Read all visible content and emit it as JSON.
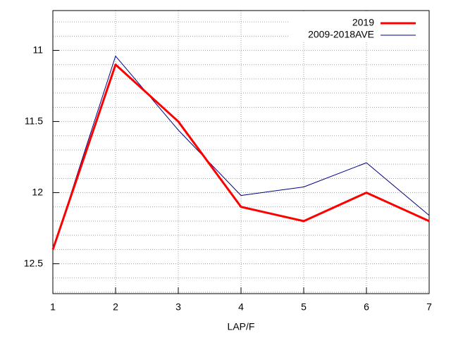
{
  "chart_data": {
    "type": "line",
    "x_label": "LAP/F",
    "x": [
      1,
      2,
      3,
      4,
      5,
      6,
      7
    ],
    "xlim": [
      1,
      7
    ],
    "xticks": [
      1,
      2,
      3,
      4,
      5,
      6,
      7
    ],
    "ylim": [
      10.72,
      12.71
    ],
    "y_reversed": true,
    "yticks": [
      11,
      11.5,
      12,
      12.5
    ],
    "y_minor_ticks": [
      10.8,
      10.9,
      11.1,
      11.2,
      11.3,
      11.4,
      11.6,
      11.7,
      11.8,
      11.9,
      12.1,
      12.2,
      12.3,
      12.4,
      12.6,
      12.7
    ],
    "grid": true,
    "legend": "top-right",
    "series": [
      {
        "name": "2019",
        "color": "#ff0000",
        "width": 3,
        "values": [
          12.4,
          11.1,
          11.5,
          12.1,
          12.2,
          12.0,
          12.2
        ]
      },
      {
        "name": "2009-2018AVE",
        "color": "#000080",
        "width": 1,
        "values": [
          12.4,
          11.04,
          11.56,
          12.02,
          11.96,
          11.79,
          12.16
        ]
      }
    ]
  }
}
